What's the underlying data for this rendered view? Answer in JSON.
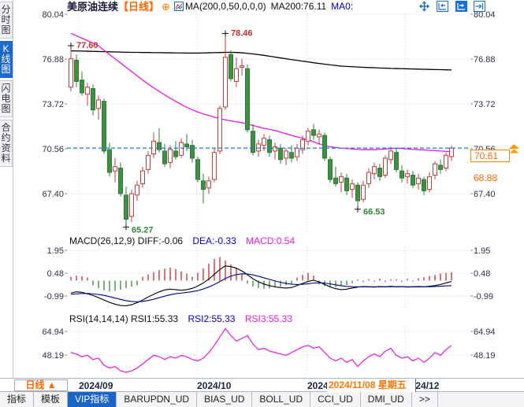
{
  "header": {
    "title": "美原油连续",
    "period": "【日线】",
    "add_icon": "⊕",
    "ma_formula": "MA(200,0,50,0,0,0)",
    "ma200": "MA200:76.11",
    "ma0": "MA0:"
  },
  "sidebar": {
    "items": [
      {
        "label": "分时图",
        "selected": false
      },
      {
        "label": "K线图",
        "selected": true
      },
      {
        "label": "闪电图",
        "selected": false
      },
      {
        "label": "合约资料",
        "selected": false
      }
    ]
  },
  "toolbar": {
    "icons": [
      "pan-tool",
      "compress-bars",
      "expand-bars",
      "go-to-latest"
    ]
  },
  "price_overlays": {
    "current_price": "70.61",
    "marker_price": "68.88"
  },
  "macd_panel": {
    "formula_and_diff": "MACD(26,12,9) DIFF:-0.06",
    "dea": "DEA:-0.33",
    "macd": "MACD:0.54"
  },
  "rsi_panel": {
    "formula_and_rsi1": "RSI(14,14,14) RSI1:55.33",
    "rsi2": "RSI2:55.33",
    "rsi3": "RSI3:55.33"
  },
  "xaxis": {
    "period": "日线 ▲",
    "months": [
      "2024/09",
      "2024/10",
      "2024/11",
      "2024/12"
    ],
    "date_tip": "2024/11/08 星期五"
  },
  "bottom_tabs": {
    "items": [
      {
        "label": "指标",
        "selected": false
      },
      {
        "label": "模板",
        "selected": false
      },
      {
        "label": "VIP指标",
        "selected": true
      },
      {
        "label": "BARUPDN_UD",
        "selected": false
      },
      {
        "label": "BIAS_UD",
        "selected": false
      },
      {
        "label": "BOLL_UD",
        "selected": false
      },
      {
        "label": "CCI_UD",
        "selected": false
      },
      {
        "label": "DMI_UD",
        "selected": false
      },
      {
        "label": ">>",
        "selected": false
      }
    ]
  },
  "chart_data": [
    {
      "type": "candlestick",
      "title": "美原油连续 日线",
      "up_color": "#c03c3c",
      "down_color": "#3f8f45",
      "last_price": 70.61,
      "marker_price": 68.88,
      "y_ticks": [
        80.04,
        76.88,
        73.72,
        70.56,
        67.4
      ],
      "x_tick_labels": [
        "2024/09",
        "2024/10",
        "2024/11",
        "2024/12"
      ],
      "candles": [
        [
          74.9,
          77.6,
          74.6,
          76.9
        ],
        [
          76.8,
          77.2,
          74.9,
          75.3
        ],
        [
          75.4,
          76.0,
          74.3,
          74.5
        ],
        [
          74.4,
          75.2,
          73.6,
          74.9
        ],
        [
          74.8,
          75.1,
          72.9,
          73.3
        ],
        [
          73.4,
          74.3,
          72.6,
          74.0
        ],
        [
          73.9,
          74.1,
          70.2,
          70.4
        ],
        [
          70.5,
          71.0,
          68.6,
          68.9
        ],
        [
          69.0,
          69.9,
          68.2,
          69.3
        ],
        [
          69.2,
          69.6,
          67.2,
          67.4
        ],
        [
          67.3,
          67.9,
          65.27,
          65.6
        ],
        [
          65.8,
          67.7,
          65.4,
          67.4
        ],
        [
          67.3,
          68.3,
          66.9,
          68.0
        ],
        [
          68.1,
          69.3,
          67.8,
          69.0
        ],
        [
          69.1,
          70.4,
          68.8,
          70.1
        ],
        [
          70.2,
          71.7,
          69.9,
          71.1
        ],
        [
          71.0,
          72.0,
          70.3,
          70.5
        ],
        [
          70.4,
          70.9,
          69.3,
          69.5
        ],
        [
          69.6,
          70.8,
          69.2,
          70.5
        ],
        [
          70.4,
          71.1,
          69.8,
          70.0
        ],
        [
          70.1,
          71.3,
          69.9,
          71.0
        ],
        [
          70.9,
          71.6,
          70.4,
          70.7
        ],
        [
          70.8,
          71.2,
          69.6,
          69.9
        ],
        [
          69.8,
          70.0,
          68.2,
          68.4
        ],
        [
          68.3,
          68.8,
          66.7,
          67.7
        ],
        [
          67.8,
          68.6,
          67.4,
          68.3
        ],
        [
          68.4,
          70.6,
          68.2,
          70.3
        ],
        [
          70.4,
          73.6,
          70.2,
          73.4
        ],
        [
          73.5,
          78.46,
          73.3,
          77.0
        ],
        [
          77.2,
          77.5,
          75.3,
          75.5
        ],
        [
          75.3,
          77.0,
          74.9,
          76.2
        ],
        [
          76.3,
          76.9,
          75.7,
          76.4
        ],
        [
          76.2,
          76.5,
          71.7,
          71.9
        ],
        [
          71.8,
          72.3,
          70.1,
          70.3
        ],
        [
          70.4,
          71.2,
          70.0,
          70.9
        ],
        [
          70.8,
          71.6,
          70.4,
          71.3
        ],
        [
          71.2,
          71.5,
          70.0,
          70.3
        ],
        [
          70.4,
          71.0,
          69.8,
          70.7
        ],
        [
          70.6,
          70.9,
          69.5,
          69.8
        ],
        [
          69.9,
          70.6,
          69.4,
          70.4
        ],
        [
          70.3,
          70.8,
          69.6,
          69.9
        ],
        [
          70.0,
          70.9,
          69.7,
          70.6
        ],
        [
          70.5,
          71.5,
          70.2,
          71.2
        ],
        [
          71.1,
          72.0,
          70.8,
          71.8
        ],
        [
          71.9,
          72.3,
          71.2,
          71.5
        ],
        [
          71.4,
          71.9,
          70.9,
          71.6
        ],
        [
          71.5,
          71.7,
          69.7,
          69.9
        ],
        [
          69.8,
          70.0,
          68.2,
          68.4
        ],
        [
          68.5,
          69.3,
          67.9,
          68.1
        ],
        [
          68.2,
          68.9,
          67.5,
          68.6
        ],
        [
          68.5,
          68.8,
          67.3,
          67.6
        ],
        [
          67.7,
          68.4,
          67.1,
          68.1
        ],
        [
          68.0,
          68.2,
          66.53,
          66.9
        ],
        [
          67.0,
          68.3,
          66.8,
          68.0
        ],
        [
          68.1,
          69.2,
          67.8,
          68.9
        ],
        [
          68.8,
          69.6,
          68.4,
          69.3
        ],
        [
          69.2,
          69.5,
          68.3,
          68.6
        ],
        [
          68.7,
          70.1,
          68.5,
          69.9
        ],
        [
          69.8,
          70.7,
          69.5,
          70.4
        ],
        [
          70.3,
          70.6,
          68.9,
          69.1
        ],
        [
          69.0,
          69.4,
          68.2,
          68.5
        ],
        [
          68.6,
          69.1,
          68.1,
          68.8
        ],
        [
          68.7,
          69.0,
          67.8,
          68.0
        ],
        [
          68.1,
          68.8,
          67.7,
          68.5
        ],
        [
          68.4,
          68.6,
          67.3,
          67.6
        ],
        [
          67.7,
          68.9,
          67.5,
          68.6
        ],
        [
          68.7,
          69.7,
          68.4,
          69.5
        ],
        [
          69.4,
          69.8,
          68.8,
          69.1
        ],
        [
          69.2,
          70.3,
          69.0,
          70.1
        ],
        [
          70.0,
          70.8,
          69.7,
          70.61
        ]
      ],
      "series": [
        {
          "name": "MA200",
          "color": "#000000",
          "values": [
            77.46,
            77.45,
            77.44,
            77.43,
            77.42,
            77.41,
            77.4,
            77.39,
            77.38,
            77.37,
            77.36,
            77.35,
            77.35,
            77.34,
            77.34,
            77.33,
            77.33,
            77.32,
            77.32,
            77.31,
            77.31,
            77.3,
            77.3,
            77.3,
            77.31,
            77.32,
            77.33,
            77.34,
            77.35,
            77.35,
            77.34,
            77.32,
            77.28,
            77.24,
            77.19,
            77.14,
            77.08,
            77.02,
            76.96,
            76.9,
            76.84,
            76.79,
            76.73,
            76.68,
            76.62,
            76.57,
            76.52,
            76.47,
            76.43,
            76.38,
            76.36,
            76.34,
            76.32,
            76.3,
            76.28,
            76.27,
            76.25,
            76.24,
            76.22,
            76.21,
            76.2,
            76.19,
            76.18,
            76.17,
            76.16,
            76.15,
            76.14,
            76.13,
            76.12,
            76.11
          ]
        },
        {
          "name": "MA50",
          "color": "#e619e6",
          "values": [
            78.7,
            78.52,
            78.35,
            78.18,
            78.0,
            77.8,
            77.5,
            77.2,
            76.9,
            76.6,
            76.3,
            76.0,
            75.7,
            75.4,
            75.12,
            74.85,
            74.6,
            74.36,
            74.12,
            73.9,
            73.68,
            73.48,
            73.3,
            73.15,
            73.01,
            72.9,
            72.79,
            72.69,
            72.6,
            72.53,
            72.46,
            72.4,
            72.3,
            72.2,
            72.1,
            72.0,
            71.93,
            71.85,
            71.73,
            71.62,
            71.5,
            71.4,
            71.3,
            71.2,
            71.05,
            70.9,
            70.8,
            70.7,
            70.65,
            70.6,
            70.58,
            70.55,
            70.52,
            70.5,
            70.5,
            70.5,
            70.52,
            70.55,
            70.58,
            70.6,
            70.58,
            70.55,
            70.52,
            70.5,
            70.48,
            70.45,
            70.43,
            70.4,
            70.38,
            70.35
          ]
        }
      ],
      "annotations": [
        {
          "index": 0,
          "kind": "high",
          "label": "77.60",
          "value": 77.6
        },
        {
          "index": 28,
          "kind": "high",
          "label": "78.46",
          "value": 78.46
        },
        {
          "index": 10,
          "kind": "low",
          "label": "65.27",
          "value": 65.27
        },
        {
          "index": 52,
          "kind": "low",
          "label": "66.53",
          "value": 66.53
        }
      ]
    },
    {
      "type": "bar",
      "name": "MACD",
      "y_ticks": [
        1.95,
        0.48,
        -0.99
      ],
      "histogram": [
        0.25,
        0.32,
        0.28,
        0.2,
        -0.3,
        -0.5,
        -0.62,
        -0.7,
        -0.66,
        -0.58,
        -0.48,
        -0.4,
        -0.3,
        0.25,
        0.4,
        0.55,
        0.68,
        0.78,
        0.85,
        0.75,
        0.6,
        0.45,
        0.25,
        0.5,
        0.8,
        1.1,
        1.4,
        1.52,
        1.3,
        1.05,
        0.8,
        0.45,
        -0.2,
        -0.38,
        -0.48,
        -0.52,
        -0.5,
        -0.44,
        -0.38,
        -0.3,
        -0.22,
        0.2,
        0.38,
        0.5,
        0.32,
        -0.25,
        -0.36,
        -0.44,
        -0.42,
        -0.36,
        -0.28,
        -0.18,
        0.08,
        -0.1,
        0.1,
        -0.08,
        0.12,
        -0.1,
        0.08,
        0.1,
        -0.08,
        0.12,
        -0.06,
        0.15,
        0.22,
        0.3,
        0.38,
        0.46,
        0.5,
        0.54
      ],
      "series": [
        {
          "name": "DIFF",
          "color": "#000000",
          "values": [
            -0.8,
            -0.72,
            -0.75,
            -0.85,
            -0.95,
            -1.1,
            -1.25,
            -1.4,
            -1.52,
            -1.6,
            -1.62,
            -1.55,
            -1.42,
            -1.25,
            -1.05,
            -0.88,
            -0.72,
            -0.6,
            -0.55,
            -0.58,
            -0.62,
            -0.58,
            -0.5,
            -0.35,
            -0.15,
            0.1,
            0.4,
            0.72,
            0.95,
            0.9,
            0.8,
            0.62,
            0.38,
            0.12,
            -0.08,
            -0.22,
            -0.32,
            -0.4,
            -0.45,
            -0.48,
            -0.45,
            -0.32,
            -0.18,
            -0.05,
            0.02,
            -0.08,
            -0.25,
            -0.4,
            -0.52,
            -0.58,
            -0.55,
            -0.48,
            -0.42,
            -0.38,
            -0.4,
            -0.42,
            -0.38,
            -0.4,
            -0.36,
            -0.4,
            -0.38,
            -0.42,
            -0.4,
            -0.38,
            -0.4,
            -0.36,
            -0.32,
            -0.25,
            -0.15,
            -0.06
          ]
        },
        {
          "name": "DEA",
          "color": "#000088",
          "values": [
            -0.88,
            -0.85,
            -0.83,
            -0.83,
            -0.85,
            -0.89,
            -0.95,
            -1.03,
            -1.12,
            -1.21,
            -1.29,
            -1.34,
            -1.36,
            -1.34,
            -1.28,
            -1.2,
            -1.1,
            -1.0,
            -0.91,
            -0.84,
            -0.8,
            -0.76,
            -0.71,
            -0.64,
            -0.54,
            -0.41,
            -0.25,
            -0.06,
            0.14,
            0.29,
            0.39,
            0.44,
            0.43,
            0.37,
            0.28,
            0.18,
            0.08,
            -0.02,
            -0.11,
            -0.18,
            -0.23,
            -0.25,
            -0.24,
            -0.2,
            -0.16,
            -0.14,
            -0.16,
            -0.21,
            -0.27,
            -0.33,
            -0.37,
            -0.39,
            -0.4,
            -0.4,
            -0.4,
            -0.4,
            -0.4,
            -0.4,
            -0.39,
            -0.39,
            -0.39,
            -0.4,
            -0.4,
            -0.4,
            -0.4,
            -0.39,
            -0.38,
            -0.36,
            -0.34,
            -0.33
          ]
        }
      ]
    },
    {
      "type": "line",
      "name": "RSI",
      "y_ticks": [
        64.94,
        48.19
      ],
      "series": [
        {
          "name": "RSI3",
          "color": "#e619e6",
          "values": [
            50,
            49,
            47,
            48,
            45,
            46,
            41,
            39,
            40,
            37,
            36,
            37,
            39,
            42,
            45,
            48,
            47,
            45,
            47,
            46,
            48,
            47,
            45,
            44,
            46,
            50,
            55,
            61,
            67,
            62,
            58,
            60,
            62,
            56,
            52,
            53,
            51,
            50,
            49,
            48,
            50,
            52,
            54,
            55,
            53,
            54,
            50,
            46,
            44,
            46,
            43,
            45,
            40,
            44,
            47,
            49,
            47,
            51,
            53,
            48,
            46,
            47,
            44,
            46,
            43,
            46,
            50,
            48,
            52,
            55
          ]
        }
      ]
    }
  ]
}
